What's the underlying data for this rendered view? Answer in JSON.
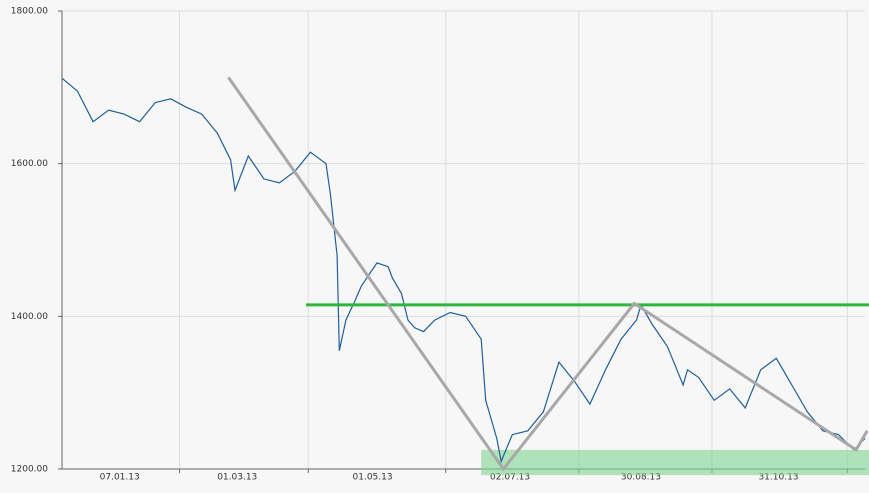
{
  "chart_data": {
    "type": "line",
    "x": [
      "2012-12-12",
      "2012-12-19",
      "2012-12-26",
      "2013-01-02",
      "2013-01-09",
      "2013-01-16",
      "2013-01-23",
      "2013-01-30",
      "2013-02-06",
      "2013-02-13",
      "2013-02-20",
      "2013-02-26",
      "2013-02-28",
      "2013-03-06",
      "2013-03-13",
      "2013-03-20",
      "2013-03-27",
      "2013-04-03",
      "2013-04-10",
      "2013-04-12",
      "2013-04-15",
      "2013-04-16",
      "2013-04-19",
      "2013-04-23",
      "2013-04-26",
      "2013-05-03",
      "2013-05-08",
      "2013-05-10",
      "2013-05-14",
      "2013-05-17",
      "2013-05-20",
      "2013-05-24",
      "2013-05-29",
      "2013-06-05",
      "2013-06-12",
      "2013-06-19",
      "2013-06-21",
      "2013-06-26",
      "2013-06-28",
      "2013-07-03",
      "2013-07-10",
      "2013-07-17",
      "2013-07-24",
      "2013-07-31",
      "2013-08-07",
      "2013-08-14",
      "2013-08-21",
      "2013-08-28",
      "2013-08-30",
      "2013-09-04",
      "2013-09-11",
      "2013-09-18",
      "2013-09-20",
      "2013-09-25",
      "2013-10-02",
      "2013-10-09",
      "2013-10-16",
      "2013-10-23",
      "2013-10-30",
      "2013-11-06",
      "2013-11-13",
      "2013-11-20",
      "2013-11-27",
      "2013-12-04",
      "2013-12-09"
    ],
    "series": [
      {
        "color": "#1f5f9e",
        "values": [
          1712,
          1695,
          1655,
          1670,
          1665,
          1655,
          1680,
          1685,
          1674,
          1665,
          1640,
          1605,
          1565,
          1610,
          1580,
          1575,
          1590,
          1615,
          1600,
          1560,
          1480,
          1355,
          1395,
          1420,
          1440,
          1470,
          1465,
          1450,
          1430,
          1395,
          1385,
          1380,
          1395,
          1405,
          1400,
          1370,
          1290,
          1240,
          1210,
          1245,
          1250,
          1275,
          1340,
          1315,
          1285,
          1330,
          1370,
          1395,
          1415,
          1390,
          1360,
          1310,
          1330,
          1320,
          1290,
          1305,
          1280,
          1330,
          1345,
          1310,
          1275,
          1250,
          1245,
          1225,
          1240
        ]
      }
    ],
    "xlim": [
      "2012-12-12",
      "2013-12-09"
    ],
    "xticks": [
      {
        "value": "2013-01-07",
        "label": "07.01.13"
      },
      {
        "value": "2013-03-01",
        "label": "01.03.13"
      },
      {
        "value": "2013-05-01",
        "label": "01.05.13"
      },
      {
        "value": "2013-07-02",
        "label": "02.07.13"
      },
      {
        "value": "2013-08-30",
        "label": "30.08.13"
      },
      {
        "value": "2013-10-31",
        "label": "31.10.13"
      }
    ],
    "xgrid": [
      "2013-02-03",
      "2013-04-02",
      "2013-06-03",
      "2013-08-02",
      "2013-10-01",
      "2013-12-01"
    ],
    "ylim": [
      1200,
      1800
    ],
    "yticks": [
      {
        "value": 1200,
        "label": "1200.00"
      },
      {
        "value": 1400,
        "label": "1400.00"
      },
      {
        "value": 1600,
        "label": "1600.00"
      },
      {
        "value": 1800,
        "label": "1800.00"
      }
    ],
    "grid": true,
    "trend_line": {
      "color": "#a8a8a8",
      "x": [
        "2013-02-25",
        "2013-06-29",
        "2013-08-27",
        "2013-12-05",
        "2013-12-10"
      ],
      "values": [
        1713,
        1200,
        1417,
        1225,
        1250
      ]
    },
    "resistance": {
      "color": "#2db83d",
      "x_start": "2013-04-01",
      "value": 1415
    },
    "support_band": {
      "color": "#7fd490",
      "x_start": "2013-06-19",
      "values": [
        1192,
        1225
      ]
    }
  }
}
